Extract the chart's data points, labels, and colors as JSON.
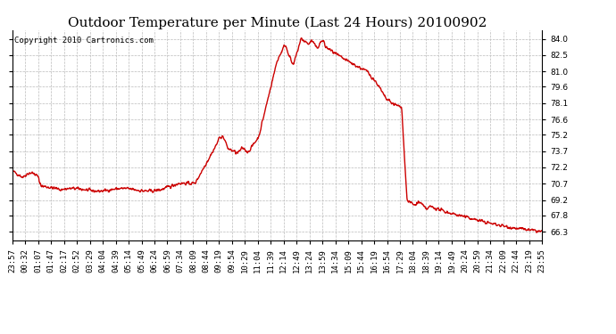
{
  "title": "Outdoor Temperature per Minute (Last 24 Hours) 20100902",
  "copyright_text": "Copyright 2010 Cartronics.com",
  "line_color": "#cc0000",
  "background_color": "#ffffff",
  "plot_bg_color": "#ffffff",
  "grid_color": "#bbbbbb",
  "ylim": [
    65.5,
    84.8
  ],
  "yticks": [
    66.3,
    67.8,
    69.2,
    70.7,
    72.2,
    73.7,
    75.2,
    76.6,
    78.1,
    79.6,
    81.0,
    82.5,
    84.0
  ],
  "xtick_labels": [
    "23:57",
    "00:32",
    "01:07",
    "01:47",
    "02:17",
    "02:52",
    "03:29",
    "04:04",
    "04:39",
    "05:14",
    "05:49",
    "06:24",
    "06:59",
    "07:34",
    "08:09",
    "08:44",
    "09:19",
    "09:54",
    "10:29",
    "11:04",
    "11:39",
    "12:14",
    "12:49",
    "13:24",
    "13:59",
    "14:34",
    "15:09",
    "15:44",
    "16:19",
    "16:54",
    "17:29",
    "18:04",
    "18:39",
    "19:14",
    "19:49",
    "20:24",
    "20:59",
    "21:34",
    "22:09",
    "22:44",
    "23:19",
    "23:55"
  ],
  "title_fontsize": 11,
  "copyright_fontsize": 6.5,
  "tick_fontsize": 6.5,
  "line_width": 1.0
}
